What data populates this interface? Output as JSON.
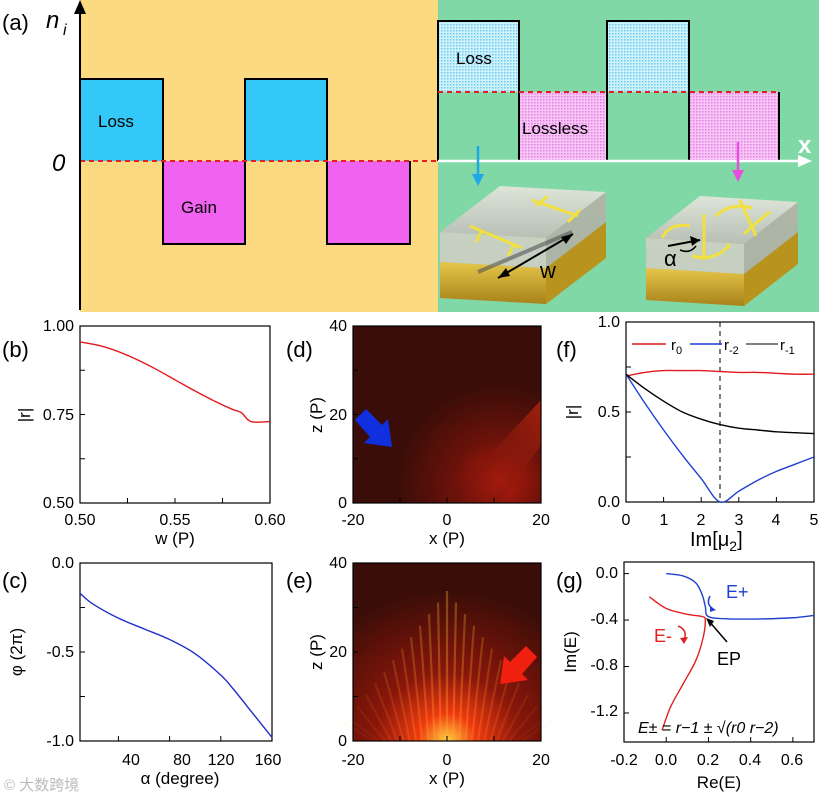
{
  "colors": {
    "gain_background": "#FCDA82",
    "loss_background": "#7FD8A5",
    "loss_block": "#34C8F8",
    "gain_block": "#F062F0",
    "dash_line": "#E32020",
    "r0_line": "#E31A1C",
    "r2_line": "#1F3FD0",
    "r1_line": "#000000",
    "phase_line": "#2030C8",
    "eplus_arrow": "#2040D0",
    "eminus_arrow": "#E02020"
  },
  "panel_a": {
    "label": "(a)",
    "y_label_n": "n",
    "y_label_sub": "i",
    "zero_label": "0",
    "x_label": "x",
    "loss_label_left": "Loss",
    "gain_label": "Gain",
    "loss_label_right": "Loss",
    "lossless_label": "Lossless",
    "w_label": "w",
    "alpha_label": "α",
    "arrow_left_icon": "down-arrow-icon",
    "arrow_right_icon": "down-arrow-icon"
  },
  "panel_b": {
    "label": "(b)",
    "xlabel": "w (P)",
    "ylabel": "|r|",
    "xticks": [
      "0.50",
      "0.55",
      "0.60"
    ],
    "yticks": [
      "0.50",
      "0.75",
      "1.00"
    ]
  },
  "panel_c": {
    "label": "(c)",
    "xlabel": "α (degree)",
    "ylabel": "φ (2π)",
    "xticks": [
      "40",
      "80",
      "120",
      "160"
    ],
    "yticks": [
      "0.0",
      "-0.5",
      "-1.0"
    ]
  },
  "panel_d": {
    "label": "(d)",
    "xlabel": "x (P)",
    "ylabel": "z (P)",
    "xticks": [
      "-20",
      "0",
      "20"
    ],
    "yticks": [
      "0",
      "20",
      "40"
    ]
  },
  "panel_e": {
    "label": "(e)",
    "xlabel": "x (P)",
    "ylabel": "z (P)",
    "xticks": [
      "-20",
      "0",
      "20"
    ],
    "yticks": [
      "0",
      "20",
      "40"
    ]
  },
  "panel_f": {
    "label": "(f)",
    "xlabel_main": "Im[μ",
    "xlabel_sub": "2",
    "xlabel_end": "]",
    "ylabel": "|r|",
    "xticks": [
      "0",
      "1",
      "2",
      "3",
      "4",
      "5"
    ],
    "yticks": [
      "0.0",
      "0.5",
      "1.0"
    ],
    "legend": [
      {
        "main": "r",
        "sub": "0"
      },
      {
        "main": "r",
        "sub": "-2"
      },
      {
        "main": "r",
        "sub": "-1"
      }
    ]
  },
  "panel_g": {
    "label": "(g)",
    "xlabel": "Re(E)",
    "ylabel": "Im(E)",
    "xticks": [
      "-0.2",
      "0.0",
      "0.2",
      "0.4",
      "0.6"
    ],
    "yticks": [
      "0.0",
      "-0.4",
      "-0.8",
      "-1.2"
    ],
    "eplus_label": "E+",
    "eminus_label": "E-",
    "ep_label": "EP",
    "formula": "E± = r−1 ± √(r0 r−2)"
  },
  "watermark": "© 大数跨境",
  "chart_data": [
    {
      "id": "b",
      "type": "line",
      "title": "",
      "xlabel": "w (P)",
      "ylabel": "|r|",
      "xlim": [
        0.5,
        0.6
      ],
      "ylim": [
        0.5,
        1.0
      ],
      "series": [
        {
          "name": "|r|",
          "x": [
            0.5,
            0.51,
            0.52,
            0.53,
            0.54,
            0.55,
            0.56,
            0.57,
            0.58,
            0.585,
            0.59,
            0.6
          ],
          "y": [
            0.955,
            0.945,
            0.928,
            0.905,
            0.878,
            0.848,
            0.818,
            0.79,
            0.765,
            0.755,
            0.73,
            0.73
          ]
        }
      ]
    },
    {
      "id": "c",
      "type": "line",
      "title": "",
      "xlabel": "α (degree)",
      "ylabel": "φ (2π)",
      "xlim": [
        10,
        160
      ],
      "ylim": [
        -1.0,
        0.0
      ],
      "series": [
        {
          "name": "φ",
          "x": [
            10,
            20,
            40,
            60,
            80,
            100,
            120,
            130,
            140,
            150,
            160
          ],
          "y": [
            -0.17,
            -0.23,
            -0.31,
            -0.37,
            -0.43,
            -0.51,
            -0.63,
            -0.71,
            -0.8,
            -0.89,
            -0.98
          ]
        }
      ]
    },
    {
      "id": "d",
      "type": "heatmap",
      "title": "",
      "xlabel": "x (P)",
      "ylabel": "z (P)",
      "xlim": [
        -20,
        20
      ],
      "ylim": [
        0,
        40
      ]
    },
    {
      "id": "e",
      "type": "heatmap",
      "title": "",
      "xlabel": "x (P)",
      "ylabel": "z (P)",
      "xlim": [
        -20,
        20
      ],
      "ylim": [
        0,
        40
      ]
    },
    {
      "id": "f",
      "type": "line",
      "title": "",
      "xlabel": "Im[μ2]",
      "ylabel": "|r|",
      "xlim": [
        0,
        5
      ],
      "ylim": [
        0,
        1.0
      ],
      "vline": 2.5,
      "series": [
        {
          "name": "r0",
          "x": [
            0,
            0.5,
            1,
            1.5,
            2,
            2.5,
            3,
            3.5,
            4,
            4.5,
            5
          ],
          "y": [
            0.7,
            0.72,
            0.73,
            0.73,
            0.73,
            0.725,
            0.72,
            0.72,
            0.715,
            0.71,
            0.71
          ]
        },
        {
          "name": "r-2",
          "x": [
            0,
            0.5,
            1,
            1.5,
            2,
            2.5,
            3,
            3.5,
            4,
            4.5,
            5
          ],
          "y": [
            0.71,
            0.55,
            0.4,
            0.26,
            0.13,
            0.0,
            0.06,
            0.12,
            0.17,
            0.21,
            0.25
          ]
        },
        {
          "name": "r-1",
          "x": [
            0,
            0.5,
            1,
            1.5,
            2,
            2.5,
            3,
            3.5,
            4,
            4.5,
            5
          ],
          "y": [
            0.71,
            0.63,
            0.56,
            0.5,
            0.46,
            0.43,
            0.41,
            0.4,
            0.39,
            0.385,
            0.38
          ]
        }
      ]
    },
    {
      "id": "g",
      "type": "line",
      "title": "",
      "xlabel": "Re(E)",
      "ylabel": "Im(E)",
      "xlim": [
        -0.2,
        0.7
      ],
      "ylim": [
        -1.45,
        0.1
      ],
      "series": [
        {
          "name": "E+",
          "x": [
            0.0,
            0.08,
            0.14,
            0.17,
            0.185,
            0.2,
            0.3,
            0.45,
            0.6,
            0.7
          ],
          "y": [
            0.0,
            -0.02,
            -0.08,
            -0.18,
            -0.28,
            -0.37,
            -0.39,
            -0.39,
            -0.38,
            -0.36
          ]
        },
        {
          "name": "E-",
          "x": [
            -0.08,
            0.0,
            0.1,
            0.17,
            0.185,
            0.175,
            0.14,
            0.08,
            0.02,
            -0.02
          ],
          "y": [
            -0.2,
            -0.3,
            -0.35,
            -0.37,
            -0.4,
            -0.55,
            -0.75,
            -0.95,
            -1.15,
            -1.35
          ]
        }
      ]
    }
  ]
}
